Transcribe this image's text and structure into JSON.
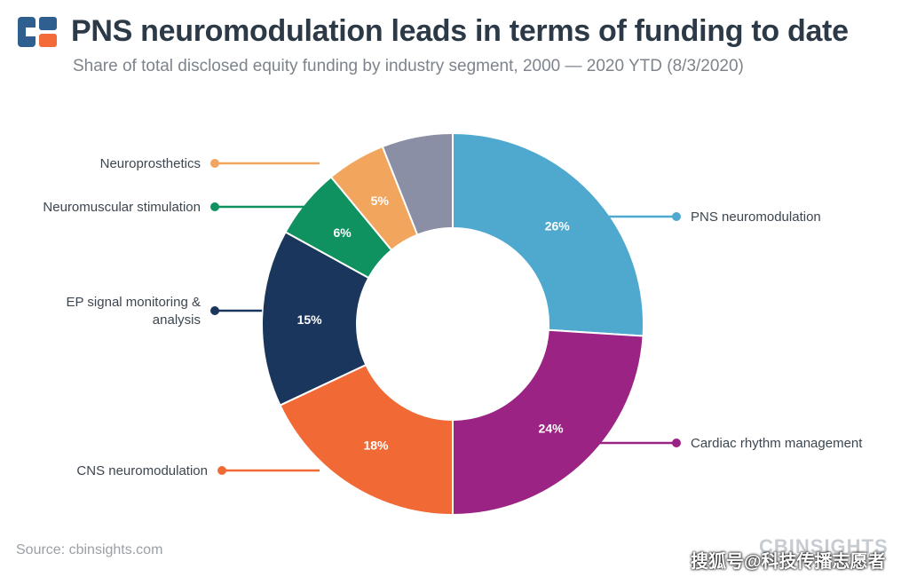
{
  "header": {
    "title": "PNS neuromodulation leads in terms of funding to date",
    "subtitle": "Share of total disclosed equity funding by industry segment, 2000 — 2020 YTD (8/3/2020)"
  },
  "footer": {
    "source": "Source: cbinsights.com",
    "brand": "CBINSIGHTS",
    "watermark": "搜狐号@科技传播志愿者"
  },
  "chart_data": {
    "type": "pie",
    "donut": true,
    "title": "PNS neuromodulation leads in terms of funding to date",
    "subtitle": "Share of total disclosed equity funding by industry segment, 2000 — 2020 YTD (8/3/2020)",
    "slices": [
      {
        "name": "PNS neuromodulation",
        "value": 26,
        "label": "26%",
        "color": "#4fa9cf"
      },
      {
        "name": "Cardiac rhythm management",
        "value": 24,
        "label": "24%",
        "color": "#9b2383"
      },
      {
        "name": "CNS neuromodulation",
        "value": 18,
        "label": "18%",
        "color": "#f16a36"
      },
      {
        "name": "EP signal monitoring & analysis",
        "value": 15,
        "label": "15%",
        "color": "#1b365d"
      },
      {
        "name": "Neuromuscular stimulation",
        "value": 6,
        "label": "6%",
        "color": "#0f9160"
      },
      {
        "name": "Neuroprosthetics",
        "value": 5,
        "label": "5%",
        "color": "#f2a65d"
      },
      {
        "name": "",
        "value": 6,
        "label": "",
        "color": "#8b8fa6"
      }
    ]
  }
}
